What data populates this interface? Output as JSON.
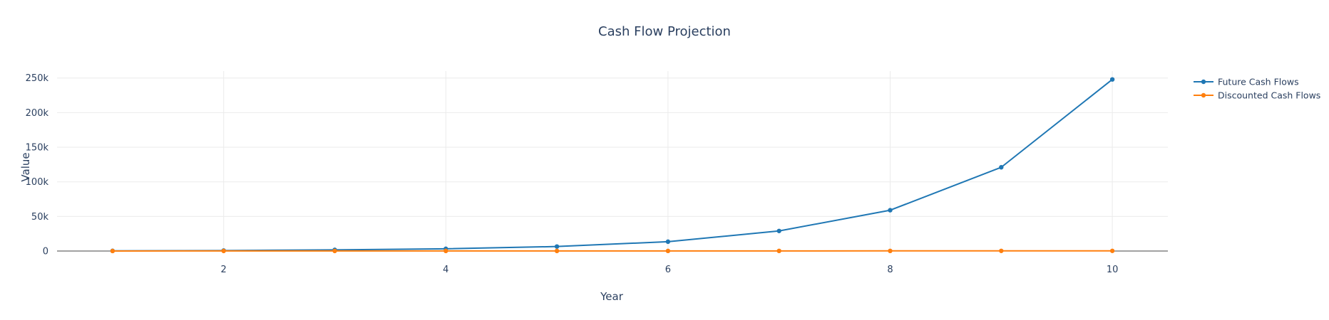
{
  "chart_data": {
    "type": "line",
    "title": "Cash Flow Projection",
    "xlabel": "Year",
    "ylabel": "Value",
    "x": [
      1,
      2,
      3,
      4,
      5,
      6,
      7,
      8,
      9,
      10
    ],
    "xlim": [
      0.5,
      10.5
    ],
    "ylim": [
      0,
      260000
    ],
    "x_ticks": [
      2,
      4,
      6,
      8,
      10
    ],
    "x_tick_labels": [
      "2",
      "4",
      "6",
      "8",
      "10"
    ],
    "y_ticks": [
      0,
      50000,
      100000,
      150000,
      200000,
      250000
    ],
    "y_tick_labels": [
      "0",
      "50k",
      "100k",
      "150k",
      "200k",
      "250k"
    ],
    "grid": true,
    "legend_position": "top-right",
    "series": [
      {
        "name": "Future Cash Flows",
        "color": "#1f77b4",
        "values": [
          250,
          700,
          1700,
          3200,
          6500,
          13500,
          29000,
          59000,
          121000,
          248000
        ]
      },
      {
        "name": "Discounted Cash Flows",
        "color": "#ff7f0e",
        "values": [
          50,
          80,
          100,
          120,
          140,
          160,
          180,
          200,
          220,
          240
        ]
      }
    ]
  }
}
